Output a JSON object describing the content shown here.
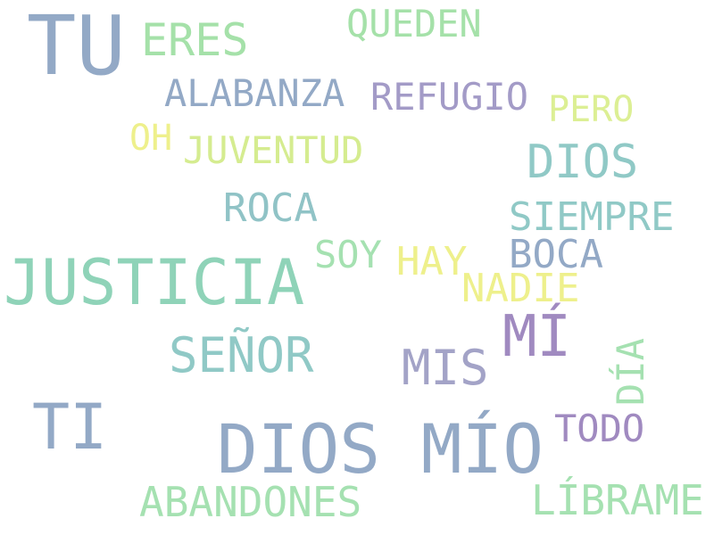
{
  "words": {
    "tu": {
      "text": "TU",
      "color": "#93a9c6"
    },
    "eres": {
      "text": "ERES",
      "color": "#a5e1a9"
    },
    "queden": {
      "text": "QUEDEN",
      "color": "#a5e1a9"
    },
    "alabanza": {
      "text": "ALABANZA",
      "color": "#93a9c6"
    },
    "refugio": {
      "text": "REFUGIO",
      "color": "#a39bc7"
    },
    "pero": {
      "text": "PERO",
      "color": "#dcef94"
    },
    "oh": {
      "text": "OH",
      "color": "#eef08c"
    },
    "juventud": {
      "text": "JUVENTUD",
      "color": "#d5ec90"
    },
    "dios": {
      "text": "DIOS",
      "color": "#90c9c6"
    },
    "roca": {
      "text": "ROCA",
      "color": "#90c3c6"
    },
    "siempre": {
      "text": "SIEMPRE",
      "color": "#90c9c6"
    },
    "soy": {
      "text": "SOY",
      "color": "#a5e1b1"
    },
    "hay": {
      "text": "HAY",
      "color": "#eef08c"
    },
    "boca": {
      "text": "BOCA",
      "color": "#93a9c6"
    },
    "justicia": {
      "text": "JUSTICIA",
      "color": "#8fd3b8"
    },
    "nadie": {
      "text": "NADIE",
      "color": "#eef08c"
    },
    "mi": {
      "text": "MÍ",
      "color": "#a08ac0"
    },
    "senor": {
      "text": "SEÑOR",
      "color": "#90c9c6"
    },
    "mis": {
      "text": "MIS",
      "color": "#a3a3c7"
    },
    "dia": {
      "text": "DÍA",
      "color": "#a5e1b1"
    },
    "ti": {
      "text": "TI",
      "color": "#93a9c6"
    },
    "dios_mio": {
      "text": "DIOS MÍO",
      "color": "#93a9c6"
    },
    "todo": {
      "text": "TODO",
      "color": "#a08ac0"
    },
    "abandones": {
      "text": "ABANDONES",
      "color": "#a5e1b1"
    },
    "librame": {
      "text": "LÍBRAME",
      "color": "#a5e1b1"
    }
  }
}
